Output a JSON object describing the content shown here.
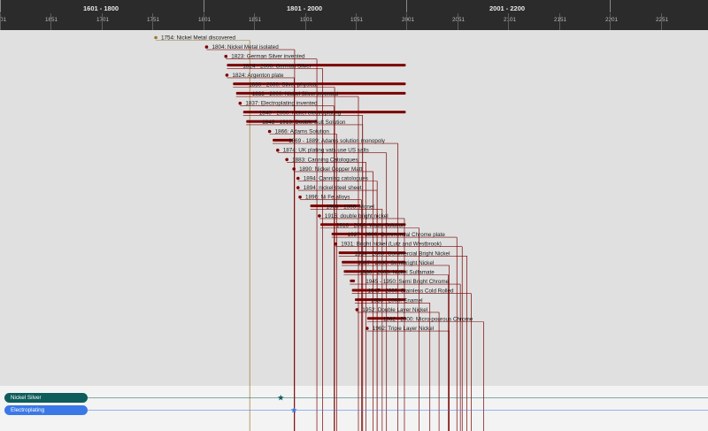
{
  "colors": {
    "event": "#7b0000",
    "first_event": "#9a7a2c",
    "nickel_silver_track": "#0e5c5c",
    "electroplating_track": "#3b78e7"
  },
  "header": {
    "centuries": [
      "1601 - 1800",
      "1801 - 2000",
      "2001 - 2200"
    ],
    "year_ticks": [
      "01",
      "1651",
      "1701",
      "1751",
      "1801",
      "1851",
      "1901",
      "1951",
      "2001",
      "2051",
      "2101",
      "2151",
      "2201",
      "2251"
    ]
  },
  "events": [
    {
      "label": "1754: Nickel Metal discovered",
      "start": 1754,
      "end": 1754,
      "row": 0
    },
    {
      "label": "1804: Nickel Metal isolated",
      "start": 1804,
      "end": 1804,
      "row": 1
    },
    {
      "label": "1823: German Silver invented",
      "start": 1823,
      "end": 1823,
      "row": 2
    },
    {
      "label": "1824 - 2000: German Silver",
      "start": 1824,
      "end": 2000,
      "row": 3
    },
    {
      "label": "1824: Argenton plate",
      "start": 1824,
      "end": 1824,
      "row": 4
    },
    {
      "label": "1830 - 2000: Silver physical",
      "start": 1830,
      "end": 2000,
      "row": 5
    },
    {
      "label": "1833 - 2000: Nickel Silver invented",
      "start": 1833,
      "end": 2000,
      "row": 6
    },
    {
      "label": "1837: Electroplating invented",
      "start": 1837,
      "end": 1837,
      "row": 7
    },
    {
      "label": "1840 - 2000: nickel electroplating",
      "start": 1840,
      "end": 2000,
      "row": 8
    },
    {
      "label": "1843 - 1913: Double Sult Solution",
      "start": 1843,
      "end": 1913,
      "row": 9
    },
    {
      "label": "1866: Adams Solution",
      "start": 1866,
      "end": 1866,
      "row": 10
    },
    {
      "label": "1869 - 1889: Adams solution monopoly",
      "start": 1869,
      "end": 1889,
      "row": 11
    },
    {
      "label": "1874: UK plating vats use US salts",
      "start": 1874,
      "end": 1874,
      "row": 12
    },
    {
      "label": "1883: Canning Catologues",
      "start": 1883,
      "end": 1883,
      "row": 13
    },
    {
      "label": "1890: Nickel Copper Matt",
      "start": 1890,
      "end": 1890,
      "row": 14
    },
    {
      "label": "1894: Canning catologues",
      "start": 1894,
      "end": 1894,
      "row": 15
    },
    {
      "label": "1894: nickel steel sheet",
      "start": 1894,
      "end": 1894,
      "row": 16
    },
    {
      "label": "1896: Ni Fe alloys",
      "start": 1896,
      "end": 1896,
      "row": 17
    },
    {
      "label": "1906 - 1955: Monel",
      "start": 1906,
      "end": 1955,
      "row": 18
    },
    {
      "label": "1915: double bright nickel",
      "start": 1915,
      "end": 1915,
      "row": 19
    },
    {
      "label": "1916 - 2000: Watts Solution",
      "start": 1916,
      "end": 2000,
      "row": 20
    },
    {
      "label": "1927 - 2000: Commercial Chrome plate",
      "start": 1927,
      "end": 2000,
      "row": 21
    },
    {
      "label": "1931: Bright nickel (Lutz and Westbrook)",
      "start": 1931,
      "end": 1931,
      "row": 22
    },
    {
      "label": "1934 - 2000: Commercial Bright Nickel",
      "start": 1934,
      "end": 2000,
      "row": 23
    },
    {
      "label": "1937 - 2000: Semibright Nickel",
      "start": 1937,
      "end": 2000,
      "row": 24
    },
    {
      "label": "1939 - 2000: Nickel Sulfamate",
      "start": 1939,
      "end": 2000,
      "row": 25
    },
    {
      "label": "1945 - 1950: Semi Bright Chrome",
      "start": 1945,
      "end": 1950,
      "row": 26
    },
    {
      "label": "1947 - 2000: Stainless Cold Rolled",
      "start": 1947,
      "end": 2000,
      "row": 27
    },
    {
      "label": "1950 - 2000: Enamel",
      "start": 1950,
      "end": 2000,
      "row": 28
    },
    {
      "label": "1952: Double Layer Nickel",
      "start": 1952,
      "end": 1952,
      "row": 29
    },
    {
      "label": "1962 - 2000: Micro-pourous Chrome",
      "start": 1962,
      "end": 2000,
      "row": 30
    },
    {
      "label": "1962: Triple Layer Nickel",
      "start": 1962,
      "end": 1962,
      "row": 31
    }
  ],
  "tracks": [
    {
      "name": "Nickel Silver",
      "marker_year": 1877
    },
    {
      "name": "Electroplating",
      "marker_year": 1890
    }
  ]
}
